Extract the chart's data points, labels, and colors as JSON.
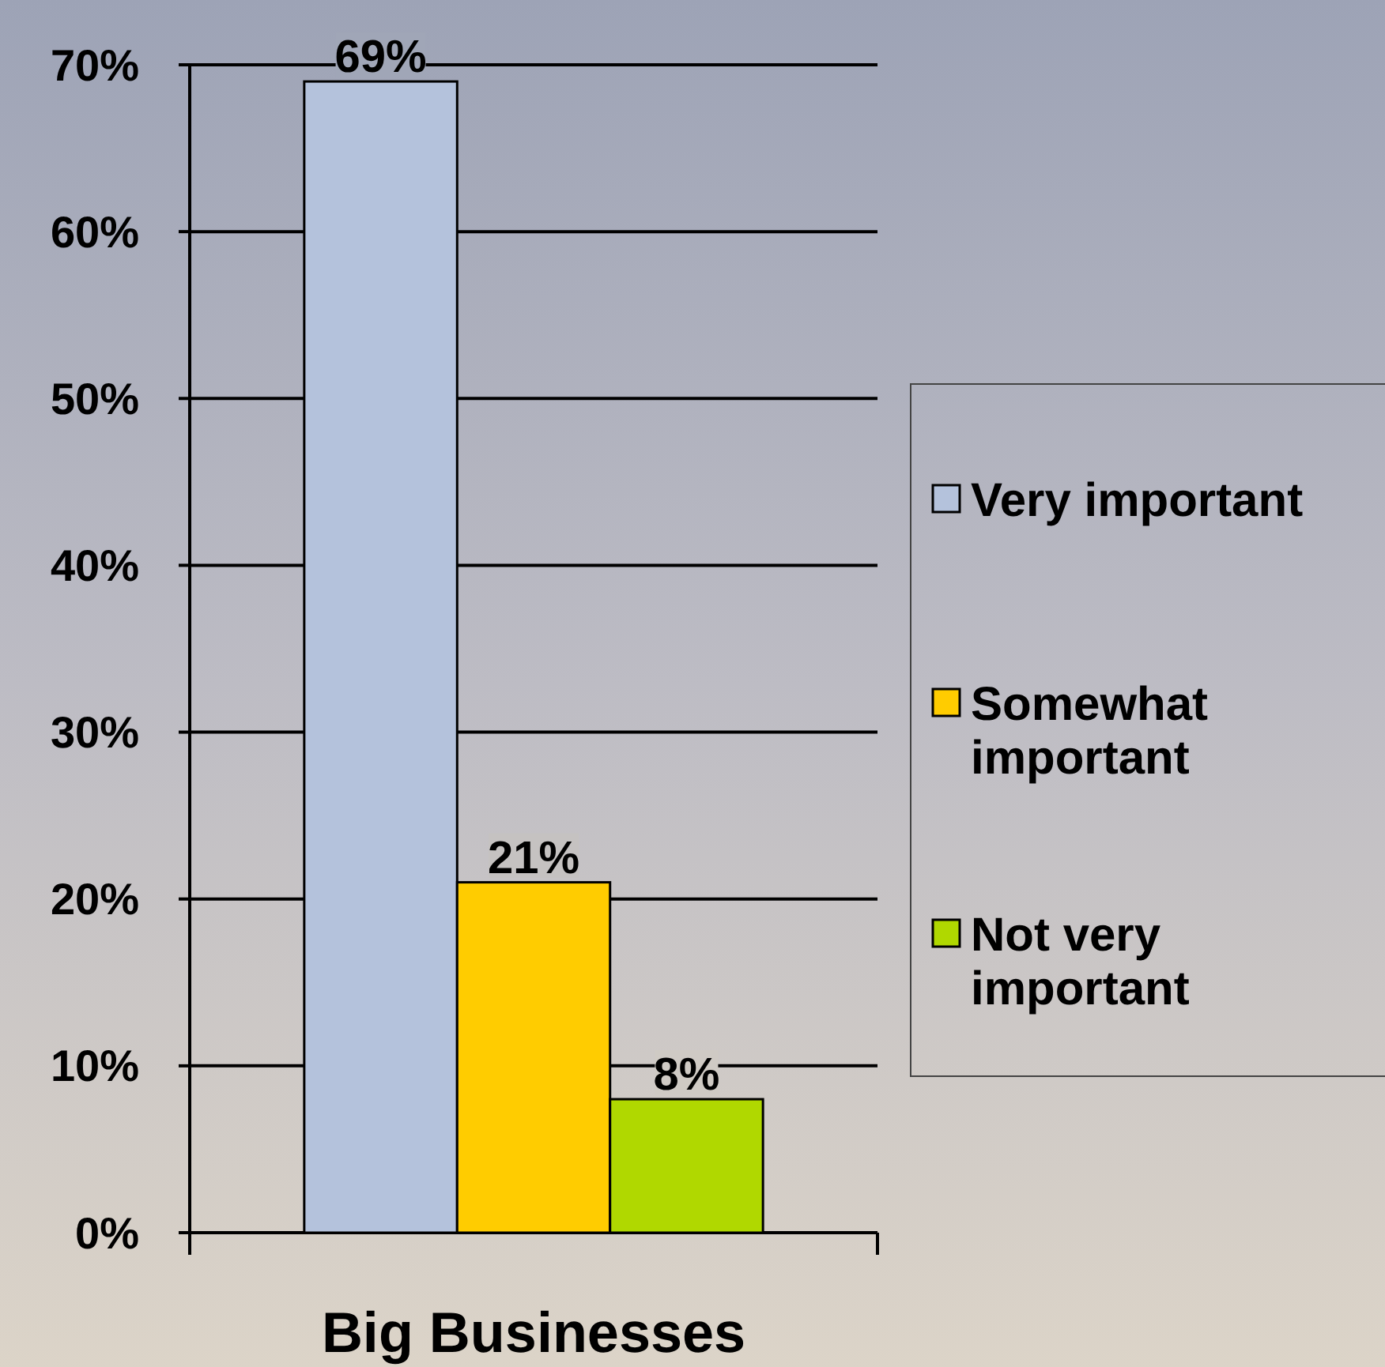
{
  "chart_data": {
    "type": "bar",
    "categories": [
      "Big Businesses"
    ],
    "series": [
      {
        "name": "Very important",
        "color": "#b4c2dc",
        "values": [
          69
        ],
        "value_labels": [
          "69%"
        ]
      },
      {
        "name": "Somewhat important",
        "color": "#ffcc00",
        "values": [
          21
        ],
        "value_labels": [
          "21%"
        ]
      },
      {
        "name": "Not very important",
        "color": "#b0d800",
        "values": [
          8
        ],
        "value_labels": [
          "8%"
        ]
      }
    ],
    "ylim": [
      0,
      70
    ],
    "yticks": [
      {
        "value": 0,
        "label": "0%"
      },
      {
        "value": 10,
        "label": "10%"
      },
      {
        "value": 20,
        "label": "20%"
      },
      {
        "value": 30,
        "label": "30%"
      },
      {
        "value": 40,
        "label": "40%"
      },
      {
        "value": 50,
        "label": "50%"
      },
      {
        "value": 60,
        "label": "60%"
      },
      {
        "value": 70,
        "label": "70%"
      }
    ],
    "grid": "y",
    "legend": "right"
  }
}
